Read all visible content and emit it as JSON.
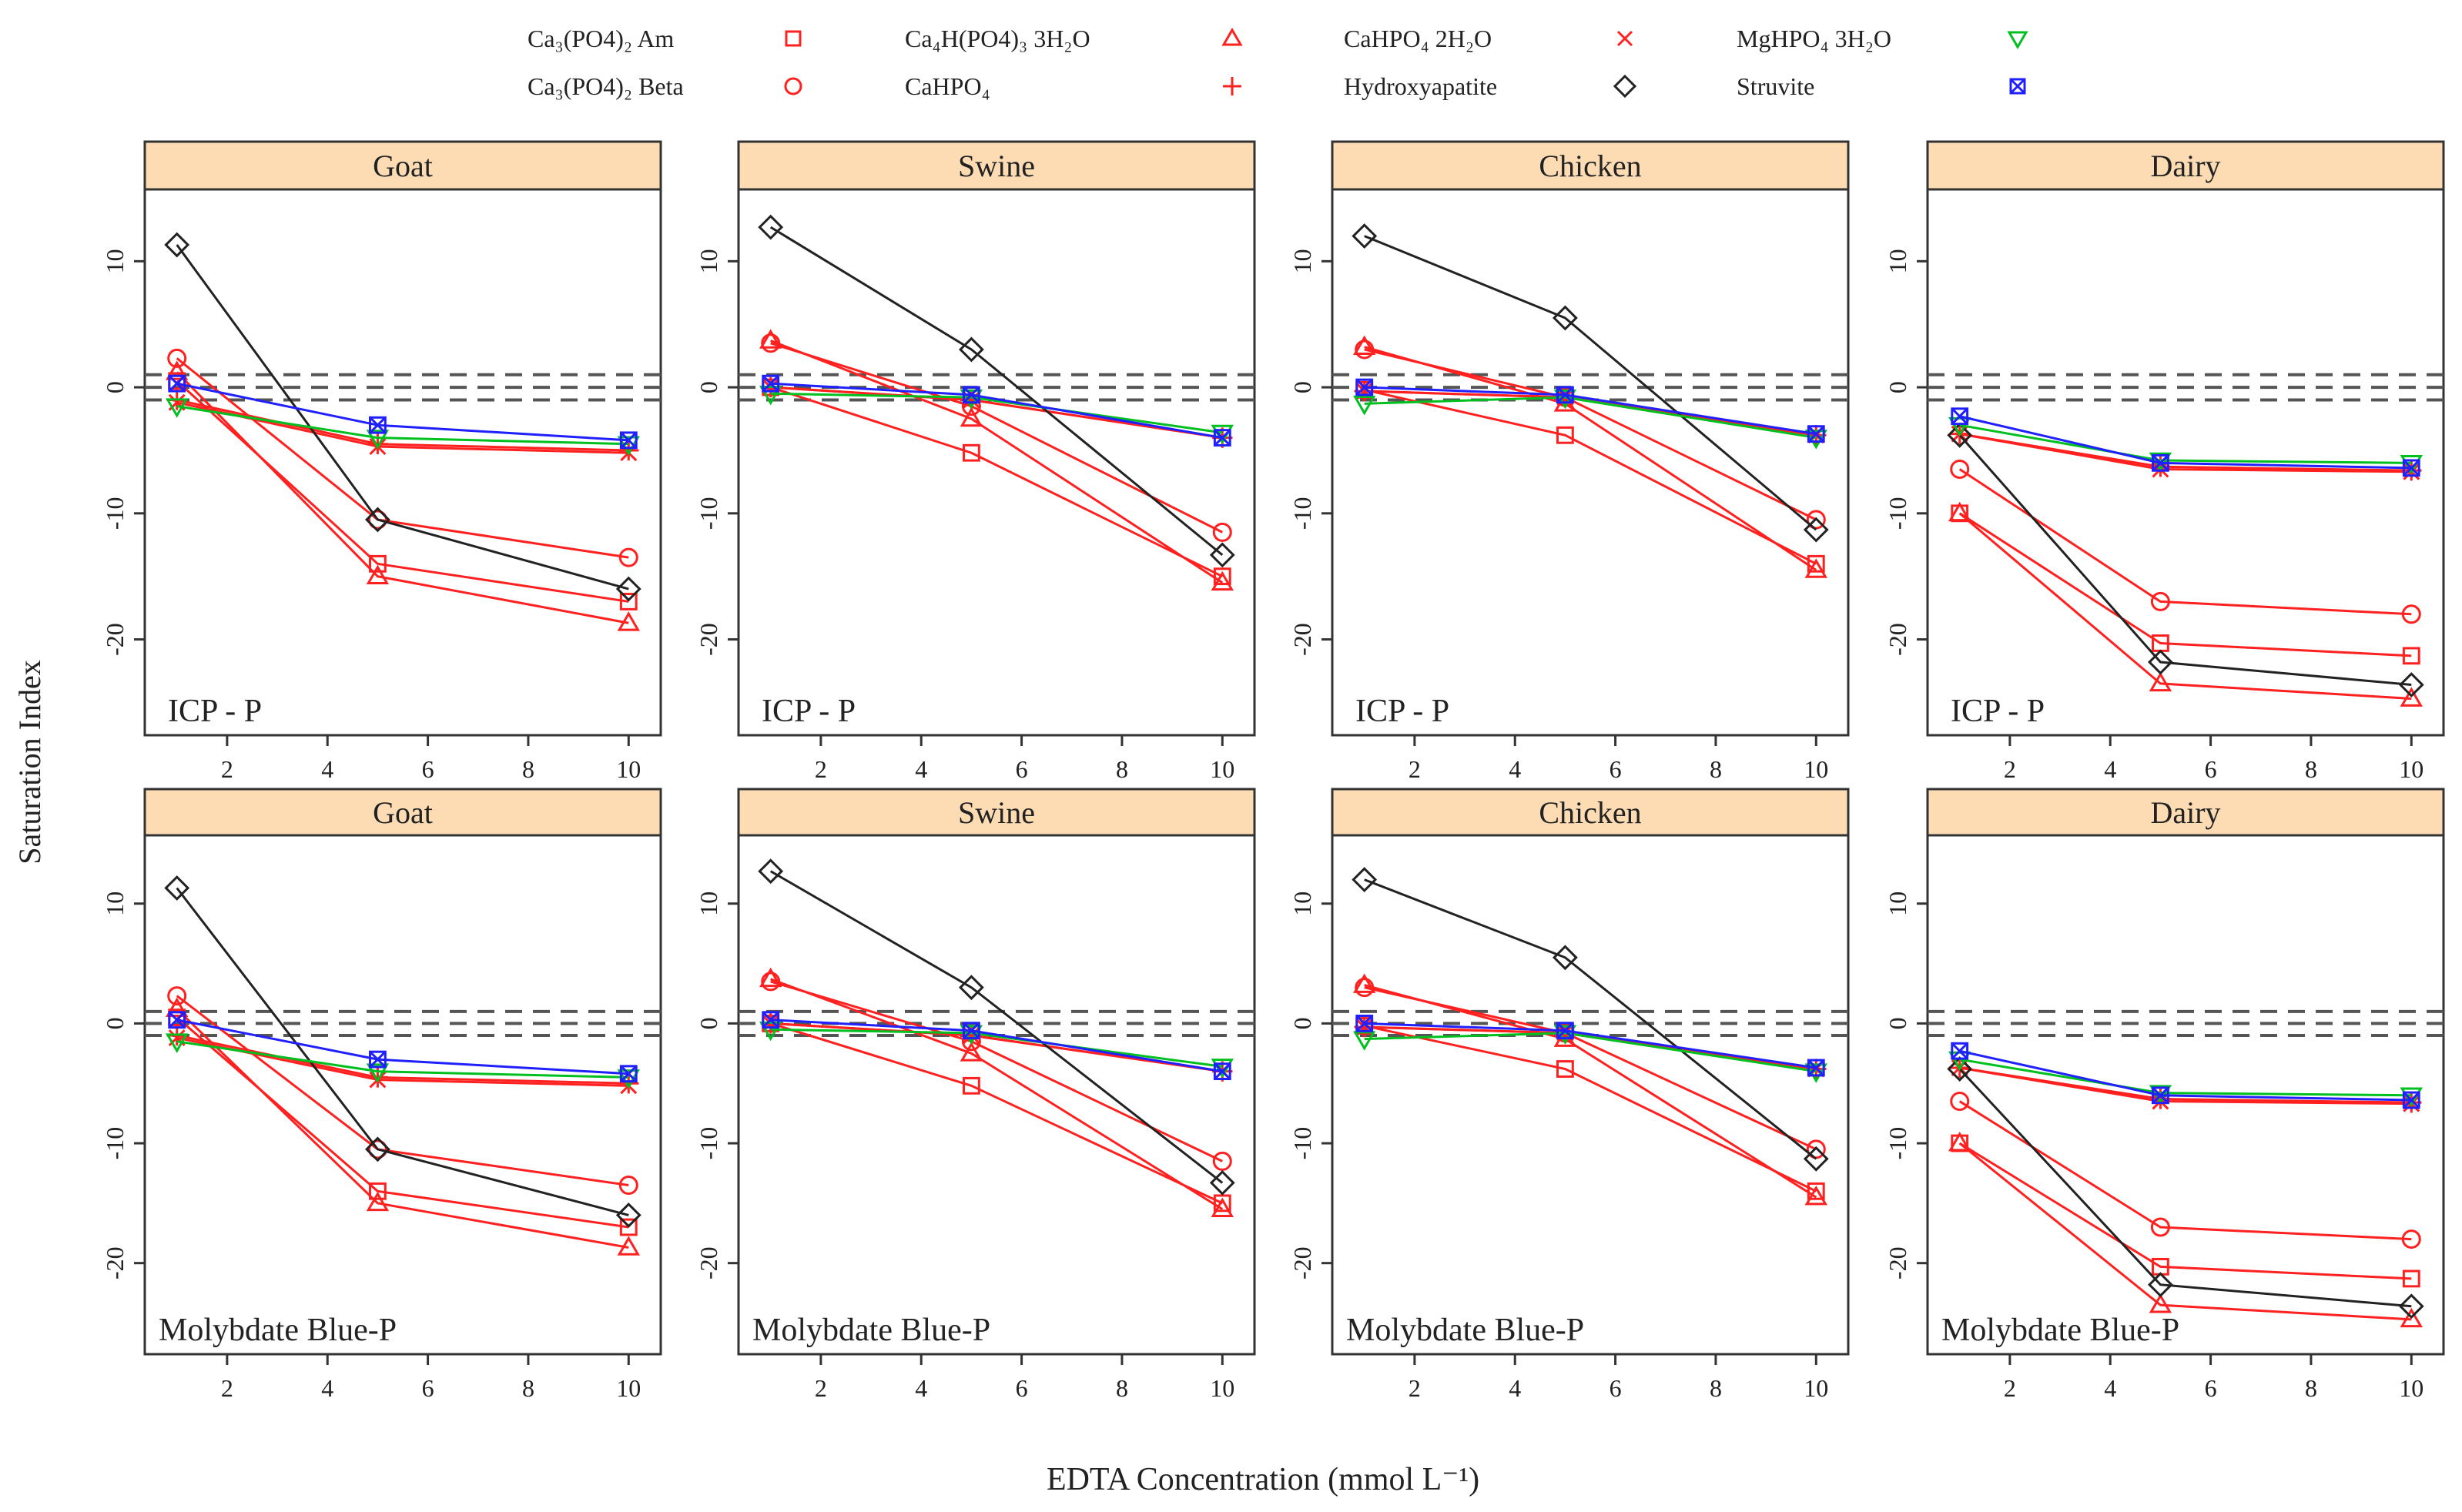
{
  "chart_data": {
    "type": "line",
    "xlabel": "EDTA Concentration (mmol L⁻¹)",
    "ylabel": "Saturation Index",
    "x": [
      1,
      5,
      10
    ],
    "xlim": [
      0.36,
      10.64
    ],
    "ylim": [
      -27.6,
      15.7
    ],
    "x_ticks": [
      2,
      4,
      6,
      8,
      10
    ],
    "y_ticks": [
      10,
      0,
      -10,
      -20
    ],
    "reference_lines": [
      1,
      0,
      -1
    ],
    "grid": false,
    "legend_placement": "top",
    "series_defs": [
      {
        "name": "Ca₃(PO4)₂ Am",
        "marker": "square",
        "color": "#ff2020"
      },
      {
        "name": "Ca₃(PO4)₂ Beta",
        "marker": "circle",
        "color": "#ff2020"
      },
      {
        "name": "Ca₄H(PO4)₃ 3H₂O",
        "marker": "triangle",
        "color": "#ff2020"
      },
      {
        "name": "CaHPO₄",
        "marker": "plus",
        "color": "#ff2020"
      },
      {
        "name": "CaHPO₄ 2H₂O",
        "marker": "x",
        "color": "#ff2020"
      },
      {
        "name": "Hydroxyapatite",
        "marker": "diamond",
        "color": "#222222"
      },
      {
        "name": "MgHPO₄ 3H₂O",
        "marker": "triangle-down",
        "color": "#00c020"
      },
      {
        "name": "Struvite",
        "marker": "boxed-x",
        "color": "#2020ff"
      }
    ],
    "panels": [
      {
        "title": "Goat",
        "method": "ICP - P",
        "values": [
          [
            0.5,
            -14,
            -17
          ],
          [
            2.3,
            -10.5,
            -13.5
          ],
          [
            1.2,
            -15,
            -18.7
          ],
          [
            -1,
            -4.5,
            -5
          ],
          [
            -1.2,
            -4.7,
            -5.2
          ],
          [
            11.3,
            -10.5,
            -16
          ],
          [
            -1.5,
            -4,
            -4.5
          ],
          [
            0.3,
            -3,
            -4.2
          ]
        ]
      },
      {
        "title": "Swine",
        "method": "ICP - P",
        "values": [
          [
            0,
            -5.2,
            -15
          ],
          [
            3.5,
            -1.5,
            -11.5
          ],
          [
            3.7,
            -2.5,
            -15.5
          ],
          [
            0,
            -1,
            -4
          ],
          [
            0,
            -1,
            -4
          ],
          [
            12.7,
            3,
            -13.3
          ],
          [
            -0.5,
            -0.8,
            -3.6
          ],
          [
            0.3,
            -0.6,
            -4
          ]
        ]
      },
      {
        "title": "Chicken",
        "method": "ICP - P",
        "values": [
          [
            -0.2,
            -3.8,
            -14
          ],
          [
            3,
            -0.8,
            -10.5
          ],
          [
            3.2,
            -1.3,
            -14.5
          ],
          [
            -0.3,
            -0.8,
            -3.8
          ],
          [
            -0.3,
            -0.8,
            -3.8
          ],
          [
            12,
            5.5,
            -11.3
          ],
          [
            -1.3,
            -0.8,
            -4
          ],
          [
            0,
            -0.6,
            -3.7
          ]
        ]
      },
      {
        "title": "Dairy",
        "method": "ICP - P",
        "values": [
          [
            -10,
            -20.3,
            -21.3
          ],
          [
            -6.5,
            -17,
            -18
          ],
          [
            -10,
            -23.5,
            -24.7
          ],
          [
            -3.7,
            -6.3,
            -6.6
          ],
          [
            -3.7,
            -6.5,
            -6.7
          ],
          [
            -3.8,
            -21.8,
            -23.6
          ],
          [
            -3,
            -5.8,
            -6
          ],
          [
            -2.3,
            -6,
            -6.4
          ]
        ]
      },
      {
        "title": "Goat",
        "method": "Molybdate Blue-P",
        "values": [
          [
            0.5,
            -14,
            -17
          ],
          [
            2.3,
            -10.5,
            -13.5
          ],
          [
            1.2,
            -15,
            -18.7
          ],
          [
            -1,
            -4.5,
            -5
          ],
          [
            -1.2,
            -4.7,
            -5.2
          ],
          [
            11.3,
            -10.5,
            -16
          ],
          [
            -1.5,
            -4,
            -4.5
          ],
          [
            0.3,
            -3,
            -4.2
          ]
        ]
      },
      {
        "title": "Swine",
        "method": "Molybdate Blue-P",
        "values": [
          [
            0,
            -5.2,
            -15
          ],
          [
            3.5,
            -1.5,
            -11.5
          ],
          [
            3.7,
            -2.5,
            -15.5
          ],
          [
            0,
            -1,
            -4
          ],
          [
            0,
            -1,
            -4
          ],
          [
            12.7,
            3,
            -13.3
          ],
          [
            -0.5,
            -0.8,
            -3.6
          ],
          [
            0.3,
            -0.6,
            -4
          ]
        ]
      },
      {
        "title": "Chicken",
        "method": "Molybdate Blue-P",
        "values": [
          [
            -0.2,
            -3.8,
            -14
          ],
          [
            3,
            -0.8,
            -10.5
          ],
          [
            3.2,
            -1.3,
            -14.5
          ],
          [
            -0.3,
            -0.8,
            -3.8
          ],
          [
            -0.3,
            -0.8,
            -3.8
          ],
          [
            12,
            5.5,
            -11.3
          ],
          [
            -1.3,
            -0.8,
            -4
          ],
          [
            0,
            -0.6,
            -3.7
          ]
        ]
      },
      {
        "title": "Dairy",
        "method": "Molybdate Blue-P",
        "values": [
          [
            -10,
            -20.3,
            -21.3
          ],
          [
            -6.5,
            -17,
            -18
          ],
          [
            -10,
            -23.5,
            -24.7
          ],
          [
            -3.7,
            -6.3,
            -6.6
          ],
          [
            -3.7,
            -6.5,
            -6.7
          ],
          [
            -3.8,
            -21.8,
            -23.6
          ],
          [
            -3,
            -5.8,
            -6
          ],
          [
            -2.3,
            -6,
            -6.4
          ]
        ]
      }
    ],
    "colors": {
      "strip": "#fddcb4",
      "refline": "#555555"
    }
  }
}
